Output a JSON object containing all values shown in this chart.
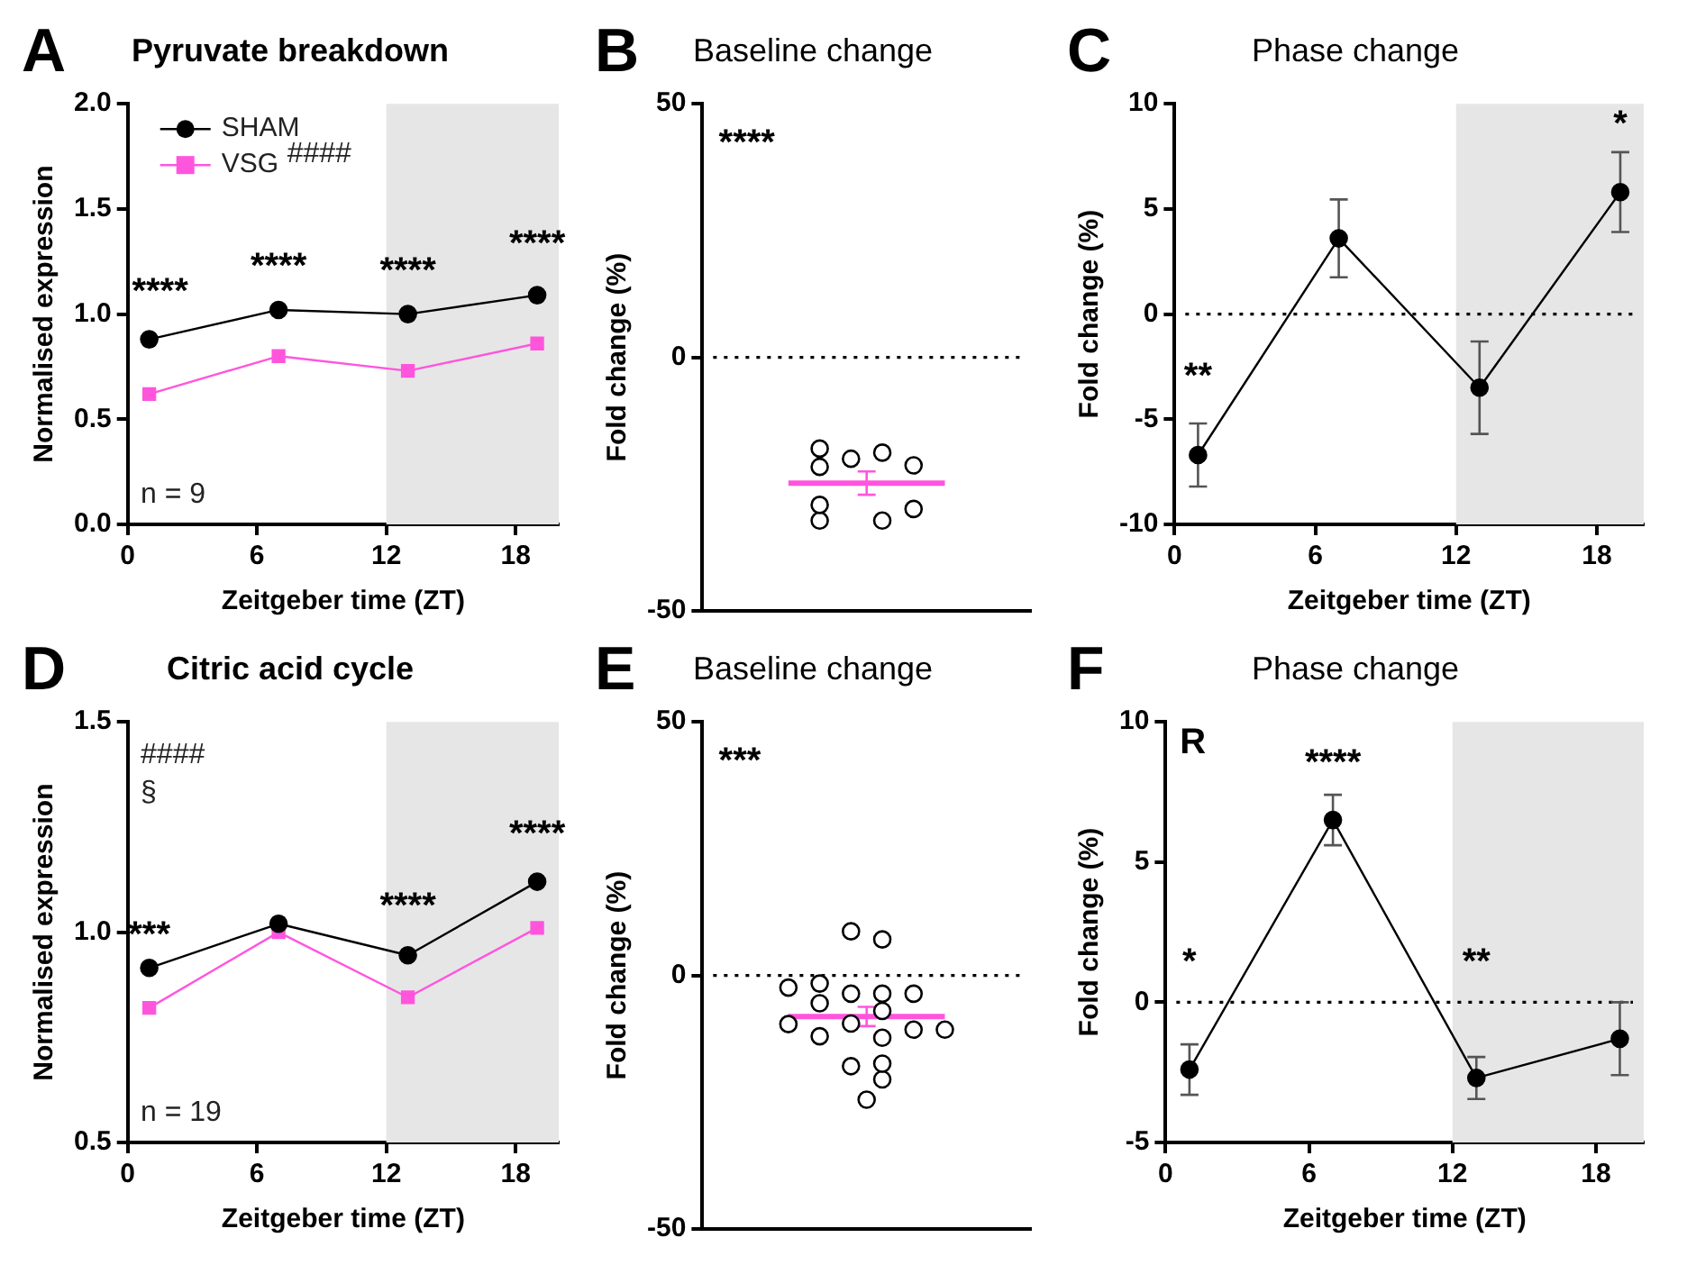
{
  "chart_data": [
    {
      "type": "line",
      "title": "Pyruvate breakdown",
      "xlabel": "Zeitgeber time (ZT)",
      "ylabel": "Normalised expression",
      "x": [
        1,
        7,
        13,
        19
      ],
      "series": [
        {
          "name": "SHAM",
          "color": "#000000",
          "marker": "circle",
          "values": [
            0.88,
            1.02,
            1.0,
            1.09
          ]
        },
        {
          "name": "VSG",
          "color": "#ff55dd",
          "marker": "square",
          "values": [
            0.62,
            0.8,
            0.73,
            0.86
          ]
        }
      ],
      "xlim": [
        0,
        20
      ],
      "xticks": [
        0,
        6,
        12,
        18
      ],
      "ylim": [
        0,
        2
      ],
      "yticks": [
        {
          "value": 0,
          "label": "0.0"
        },
        {
          "value": 0.5,
          "label": "0.5"
        },
        {
          "value": 1,
          "label": "1.0"
        },
        {
          "value": 1.5,
          "label": "1.5"
        },
        {
          "value": 2,
          "label": "2.0"
        }
      ],
      "bands": [
        {
          "axis": "x",
          "from": 12,
          "to": 20,
          "color": "#e6e6e6"
        }
      ],
      "legend": "top left",
      "annotations": [
        "A",
        "####",
        "n = 9",
        "****",
        "****",
        "****",
        "****"
      ]
    },
    {
      "type": "scatter",
      "title": "Baseline change",
      "ylabel": "Fold change (%)",
      "tick_labels": "y",
      "ylim": [
        -50,
        50
      ],
      "yticks": [
        -50,
        0,
        50
      ],
      "categories": [
        null,
        null,
        null,
        null,
        null,
        null,
        null,
        null,
        null,
        null,
        null,
        null,
        null,
        null,
        null,
        null,
        null,
        null,
        null,
        null,
        null
      ],
      "series": [
        {
          "color": "#000000",
          "marker": "circle",
          "values": [
            null,
            null,
            null,
            null,
            null,
            null,
            null,
            -18,
            null,
            -20,
            null,
            -18.8,
            null,
            -21.3,
            null,
            null,
            null,
            null,
            null,
            null,
            null
          ]
        },
        {
          "color": "#000000",
          "marker": "circle",
          "values": [
            null,
            null,
            null,
            null,
            null,
            null,
            null,
            -21.6,
            null,
            null,
            null,
            -32.2,
            null,
            -29.9,
            null,
            null,
            null,
            null,
            null,
            null,
            null
          ]
        },
        {
          "color": "#000000",
          "marker": "circle",
          "values": [
            null,
            null,
            null,
            null,
            null,
            null,
            null,
            -29.1,
            null,
            null,
            null,
            null,
            null,
            null,
            null,
            null,
            null,
            null,
            null,
            null,
            null
          ]
        },
        {
          "color": "#000000",
          "marker": "circle",
          "values": [
            null,
            null,
            null,
            null,
            null,
            null,
            null,
            -32.2,
            null,
            null,
            null,
            null,
            null,
            null,
            null,
            null,
            null,
            null,
            null,
            null,
            null
          ]
        },
        {
          "type": "line",
          "color": "#ff55dd",
          "marker": "none",
          "values": [
            null,
            null,
            null,
            null,
            null,
            -24.8,
            -24.8,
            -24.8,
            -24.8,
            -24.8,
            -24.8,
            -24.8,
            -24.8,
            -24.8,
            -24.8,
            -24.8,
            null,
            null,
            null,
            null,
            null
          ],
          "errors": [
            null,
            null,
            null,
            null,
            null,
            null,
            null,
            null,
            null,
            null,
            2.3,
            null,
            null,
            null,
            null,
            null,
            null,
            null,
            null,
            null,
            null
          ]
        }
      ],
      "ref_lines": [
        {
          "axis": "y",
          "value": 0,
          "line_style": "dotted",
          "color": "#000000"
        }
      ],
      "annotations": [
        "B",
        "****"
      ]
    },
    {
      "type": "line",
      "title": "Phase change",
      "xlabel": "Zeitgeber time (ZT)",
      "ylabel": "Fold change (%)",
      "x": [
        1,
        7,
        13,
        19
      ],
      "series": [
        {
          "color": "#000000",
          "marker": "circle",
          "values": [
            -6.7,
            3.6,
            -3.5,
            5.8
          ],
          "errors": [
            1.5,
            1.85,
            2.2,
            1.9
          ]
        }
      ],
      "xlim": [
        0,
        20
      ],
      "xticks": [
        0,
        6,
        12,
        18
      ],
      "ylim": [
        -10,
        10
      ],
      "yticks": [
        -10,
        -5,
        0,
        5,
        10
      ],
      "bands": [
        {
          "axis": "x",
          "from": 12,
          "to": 20,
          "color": "#e6e6e6"
        }
      ],
      "ref_lines": [
        {
          "axis": "y",
          "value": 0,
          "line_style": "dotted",
          "color": "#000000"
        }
      ],
      "annotations": [
        "C",
        "**",
        "*"
      ]
    },
    {
      "type": "line",
      "title": "Citric acid cycle",
      "xlabel": "Zeitgeber time (ZT)",
      "ylabel": "Normalised expression",
      "x": [
        1,
        7,
        13,
        19
      ],
      "series": [
        {
          "color": "#000000",
          "marker": "circle",
          "values": [
            0.915,
            1.02,
            0.945,
            1.12
          ]
        },
        {
          "color": "#ff55dd",
          "marker": "square",
          "values": [
            0.82,
            1.0,
            0.845,
            1.01
          ]
        }
      ],
      "xlim": [
        0,
        20
      ],
      "xticks": [
        0,
        6,
        12,
        18
      ],
      "ylim": [
        0.5,
        1.5
      ],
      "yticks": [
        {
          "value": 0.5,
          "label": "0.5"
        },
        {
          "value": 1,
          "label": "1.0"
        },
        {
          "value": 1.5,
          "label": "1.5"
        }
      ],
      "bands": [
        {
          "axis": "x",
          "from": 12,
          "to": 20,
          "color": "#e6e6e6"
        }
      ],
      "annotations": [
        "D",
        "####",
        "§",
        "n = 19",
        "***",
        "****",
        "****"
      ]
    },
    {
      "type": "scatter",
      "title": "Baseline change",
      "ylabel": "Fold change (%)",
      "tick_labels": "y",
      "ylim": [
        -50,
        50
      ],
      "yticks": [
        -50,
        0,
        50
      ],
      "categories": [
        null,
        null,
        null,
        null,
        null,
        null,
        null,
        null,
        null,
        null,
        null,
        null,
        null,
        null,
        null,
        null,
        null,
        null,
        null,
        null,
        null
      ],
      "series": [
        {
          "color": "#000000",
          "marker": "circle",
          "values": [
            null,
            null,
            null,
            null,
            null,
            -2.4,
            null,
            -1.6,
            null,
            8.7,
            -24.5,
            7.1,
            null,
            -3.6,
            null,
            -10.7,
            null,
            null,
            null,
            null,
            null
          ]
        },
        {
          "color": "#000000",
          "marker": "circle",
          "values": [
            null,
            null,
            null,
            null,
            null,
            -9.6,
            null,
            -5.5,
            null,
            -3.6,
            null,
            -3.6,
            null,
            -10.7,
            null,
            null,
            null,
            null,
            null,
            null,
            null
          ]
        },
        {
          "color": "#000000",
          "marker": "circle",
          "values": [
            null,
            null,
            null,
            null,
            null,
            null,
            null,
            -12,
            null,
            -9.5,
            null,
            -7,
            null,
            null,
            null,
            null,
            null,
            null,
            null,
            null,
            null
          ]
        },
        {
          "color": "#000000",
          "marker": "circle",
          "values": [
            null,
            null,
            null,
            null,
            null,
            null,
            null,
            null,
            null,
            -17.9,
            null,
            -12.3,
            null,
            null,
            null,
            null,
            null,
            null,
            null,
            null,
            null
          ]
        },
        {
          "color": "#000000",
          "marker": "circle",
          "values": [
            null,
            null,
            null,
            null,
            null,
            null,
            null,
            null,
            null,
            null,
            null,
            -17.4,
            null,
            null,
            null,
            null,
            null,
            null,
            null,
            null,
            null
          ]
        },
        {
          "color": "#000000",
          "marker": "circle",
          "values": [
            null,
            null,
            null,
            null,
            null,
            null,
            null,
            null,
            null,
            null,
            null,
            -20.5,
            null,
            null,
            null,
            null,
            null,
            null,
            null,
            null,
            null
          ]
        },
        {
          "type": "line",
          "color": "#ff55dd",
          "marker": "none",
          "values": [
            null,
            null,
            null,
            null,
            null,
            -8.1,
            -8.1,
            -8.1,
            -8.1,
            -8.1,
            -8.1,
            -8.1,
            -8.1,
            -8.1,
            -8.1,
            -8.1,
            null,
            null,
            null,
            null,
            null
          ],
          "errors": [
            null,
            null,
            null,
            null,
            null,
            null,
            null,
            null,
            null,
            null,
            1.9,
            null,
            null,
            null,
            null,
            null,
            null,
            null,
            null,
            null,
            null
          ]
        }
      ],
      "ref_lines": [
        {
          "axis": "y",
          "value": 0,
          "line_style": "dotted",
          "color": "#000000"
        }
      ],
      "annotations": [
        "E",
        "***"
      ]
    },
    {
      "type": "line",
      "title": "Phase change",
      "xlabel": "Zeitgeber time (ZT)",
      "ylabel": "Fold change (%)",
      "x": [
        1,
        7,
        13,
        19
      ],
      "series": [
        {
          "color": "#000000",
          "marker": "circle",
          "values": [
            -2.4,
            6.5,
            -2.7,
            -1.3
          ],
          "errors": [
            0.9,
            0.9,
            0.75,
            1.3
          ]
        }
      ],
      "xlim": [
        0,
        20
      ],
      "xticks": [
        0,
        6,
        12,
        18
      ],
      "ylim": [
        -5,
        10
      ],
      "yticks": [
        -5,
        0,
        5,
        10
      ],
      "bands": [
        {
          "axis": "x",
          "from": 12,
          "to": 20,
          "color": "#e6e6e6"
        }
      ],
      "ref_lines": [
        {
          "axis": "y",
          "value": 0,
          "line_style": "dotted",
          "color": "#000000"
        }
      ],
      "annotations": [
        "F",
        "R",
        "*",
        "****",
        "**"
      ]
    }
  ]
}
